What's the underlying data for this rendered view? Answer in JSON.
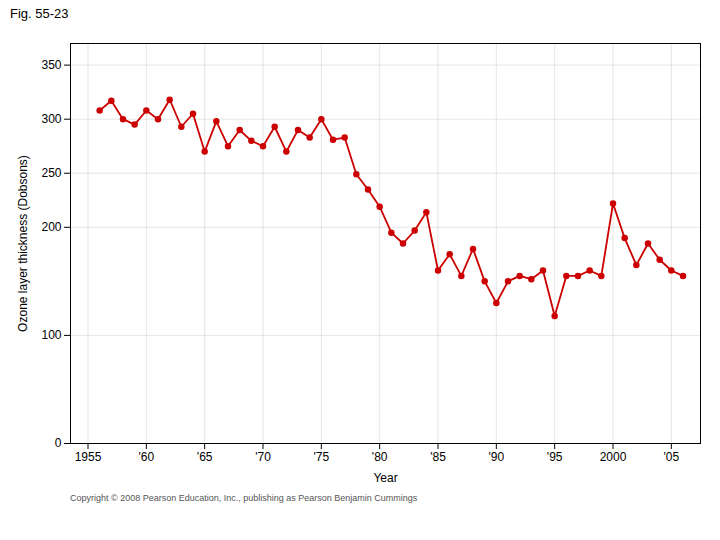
{
  "chart_data": {
    "type": "line",
    "title": "Fig. 55-23",
    "xlabel": "Year",
    "ylabel": "Ozone layer thickness (Dobsons)",
    "annotations": [
      "Copyright © 2008 Pearson Education, Inc., publishing as Pearson Benjamin Cummings"
    ],
    "x": [
      1956,
      1957,
      1958,
      1959,
      1960,
      1961,
      1962,
      1963,
      1964,
      1965,
      1966,
      1967,
      1968,
      1969,
      1970,
      1971,
      1972,
      1973,
      1974,
      1975,
      1976,
      1977,
      1978,
      1979,
      1980,
      1981,
      1982,
      1983,
      1984,
      1985,
      1986,
      1987,
      1988,
      1989,
      1990,
      1991,
      1992,
      1993,
      1994,
      1995,
      1996,
      1997,
      1998,
      1999,
      2000,
      2001,
      2002,
      2003,
      2004,
      2005,
      2006
    ],
    "values": [
      308,
      317,
      300,
      295,
      308,
      300,
      318,
      293,
      305,
      270,
      298,
      275,
      290,
      280,
      275,
      293,
      270,
      290,
      283,
      300,
      281,
      283,
      249,
      235,
      219,
      195,
      185,
      197,
      214,
      160,
      175,
      155,
      180,
      150,
      130,
      150,
      155,
      152,
      160,
      118,
      155,
      155,
      160,
      155,
      222,
      190,
      165,
      185,
      170,
      160,
      155
    ],
    "color": "#cc0000",
    "marker": "o",
    "xlim": [
      1953.5,
      2007.5
    ],
    "ylim": [
      0,
      370
    ],
    "xticks": [
      1955,
      {
        "value": 1960,
        "label": "'60"
      },
      {
        "value": 1965,
        "label": "'65"
      },
      {
        "value": 1970,
        "label": "'70"
      },
      {
        "value": 1975,
        "label": "'75"
      },
      {
        "value": 1980,
        "label": "'80"
      },
      {
        "value": 1985,
        "label": "'85"
      },
      {
        "value": 1990,
        "label": "'90"
      },
      {
        "value": 1995,
        "label": "'95"
      },
      2000,
      {
        "value": 2005,
        "label": "'05"
      }
    ],
    "yticks": [
      0,
      100,
      200,
      250,
      300,
      350
    ],
    "grid": true
  }
}
